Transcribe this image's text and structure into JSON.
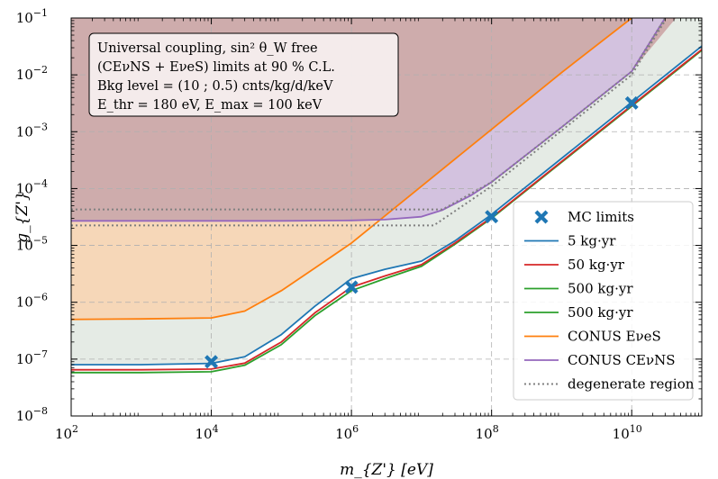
{
  "chart_data": {
    "type": "line",
    "xlabel": "m_{Z'} [eV]",
    "ylabel": "g_{Z'}",
    "xscale": "log",
    "yscale": "log",
    "xlim": [
      100,
      100000000000
    ],
    "ylim": [
      1e-08,
      0.1
    ],
    "x_ticks": [
      {
        "value": 100,
        "base": "10",
        "exp": "2"
      },
      {
        "value": 10000,
        "base": "10",
        "exp": "4"
      },
      {
        "value": 1000000,
        "base": "10",
        "exp": "6"
      },
      {
        "value": 100000000,
        "base": "10",
        "exp": "8"
      },
      {
        "value": 10000000000,
        "base": "10",
        "exp": "10"
      }
    ],
    "y_ticks": [
      {
        "value": 1e-08,
        "base": "10",
        "exp": "−8"
      },
      {
        "value": 1e-07,
        "base": "10",
        "exp": "−7"
      },
      {
        "value": 1e-06,
        "base": "10",
        "exp": "−6"
      },
      {
        "value": 1e-05,
        "base": "10",
        "exp": "−5"
      },
      {
        "value": 0.0001,
        "base": "10",
        "exp": "−4"
      },
      {
        "value": 0.001,
        "base": "10",
        "exp": "−3"
      },
      {
        "value": 0.01,
        "base": "10",
        "exp": "−2"
      },
      {
        "value": 0.1,
        "base": "10",
        "exp": "−1"
      }
    ],
    "grid": true,
    "info_box": [
      "Universal coupling, sin² θ_W free",
      "(CEνNS + EνeS) limits at 90 % C.L.",
      "Bkg level = (10 ; 0.5) cnts/kg/d/keV",
      "E_thr = 180 eV, E_max = 100 keV"
    ],
    "legend_position": "lower-right",
    "excluded_region_color": "#c9a3a3",
    "band_color": "#dfe6df",
    "series": [
      {
        "name": "MC limits",
        "legend": "MC limits",
        "kind": "marker",
        "color": "#1f77b4",
        "x": [
          10000,
          1000000,
          100000000,
          10000000000
        ],
        "y": [
          9e-08,
          1.85e-06,
          3.2e-05,
          0.0032
        ]
      },
      {
        "name": "5 kg·yr",
        "legend": "5 kg·yr",
        "kind": "line",
        "color": "#1f77b4",
        "x": [
          100,
          1000,
          10000,
          30000,
          100000,
          300000,
          1000000,
          3000000,
          10000000,
          30000000,
          100000000,
          1000000000,
          10000000000,
          100000000000
        ],
        "y": [
          8e-08,
          8e-08,
          8.4e-08,
          1.1e-07,
          2.7e-07,
          8.5e-07,
          2.6e-06,
          3.8e-06,
          5.3e-06,
          1.2e-05,
          3.5e-05,
          0.00034,
          0.0033,
          0.032
        ]
      },
      {
        "name": "50 kg·yr",
        "legend": "50 kg·yr",
        "kind": "line",
        "color": "#d62728",
        "x": [
          100,
          1000,
          10000,
          30000,
          100000,
          300000,
          1000000,
          3000000,
          10000000,
          30000000,
          100000000,
          1000000000,
          10000000000,
          100000000000
        ],
        "y": [
          6.5e-08,
          6.5e-08,
          6.7e-08,
          8.5e-08,
          2e-07,
          6.5e-07,
          1.85e-06,
          2.9e-06,
          4.6e-06,
          1.1e-05,
          3.1e-05,
          0.0003,
          0.0029,
          0.028
        ]
      },
      {
        "name": "500 kg·yr",
        "legend": "500 kg·yr",
        "kind": "line",
        "color": "#2ca02c",
        "x": [
          100,
          1000,
          10000,
          30000,
          100000,
          300000,
          1000000,
          3000000,
          10000000,
          30000000,
          100000000,
          1000000000,
          10000000000,
          100000000000
        ],
        "y": [
          5.8e-08,
          5.8e-08,
          6e-08,
          7.8e-08,
          1.8e-07,
          5.8e-07,
          1.6e-06,
          2.6e-06,
          4.3e-06,
          1.05e-05,
          3e-05,
          0.00029,
          0.0028,
          0.027
        ]
      },
      {
        "name": "500 kg·yr (2)",
        "legend": "500 kg·yr",
        "kind": "line",
        "color": "#2ca02c",
        "duplicate_of": "500 kg·yr"
      },
      {
        "name": "CONUS EνeS",
        "legend": "CONUS EνeS",
        "kind": "line",
        "color": "#ff7f0e",
        "x": [
          100,
          1000,
          10000,
          30000,
          100000,
          300000,
          1000000,
          10000000,
          100000000,
          1000000000,
          10000000000,
          15000000000
        ],
        "y": [
          5e-07,
          5.1e-07,
          5.3e-07,
          7e-07,
          1.6e-06,
          4e-06,
          1.1e-05,
          0.00011,
          0.0011,
          0.011,
          0.1,
          0.15
        ]
      },
      {
        "name": "CONUS CEνNS",
        "legend": "CONUS CEνNS",
        "kind": "line",
        "color": "#9467bd",
        "x": [
          100,
          1000,
          10000,
          100000,
          1000000,
          3000000,
          10000000,
          20000000,
          50000000,
          100000000,
          1000000000,
          10000000000,
          30000000000
        ],
        "y": [
          2.7e-05,
          2.7e-05,
          2.7e-05,
          2.7e-05,
          2.75e-05,
          2.85e-05,
          3.2e-05,
          4.2e-05,
          7.5e-05,
          0.00013,
          0.0012,
          0.0115,
          0.1
        ]
      },
      {
        "name": "degenerate region",
        "legend": "degenerate region",
        "kind": "dotted",
        "color": "#808080",
        "x_upper": [
          100,
          10000000,
          20000000,
          100000000,
          1000000000,
          10000000000,
          30000000000
        ],
        "y_upper": [
          4.3e-05,
          4.3e-05,
          4.3e-05,
          0.00013,
          0.0012,
          0.0115,
          0.1
        ],
        "x_lower": [
          100,
          10000000,
          15000000,
          100000000,
          1000000000,
          10000000000,
          30000000000
        ],
        "y_lower": [
          2.25e-05,
          2.25e-05,
          2.25e-05,
          0.00011,
          0.00105,
          0.01,
          0.09
        ]
      }
    ]
  }
}
